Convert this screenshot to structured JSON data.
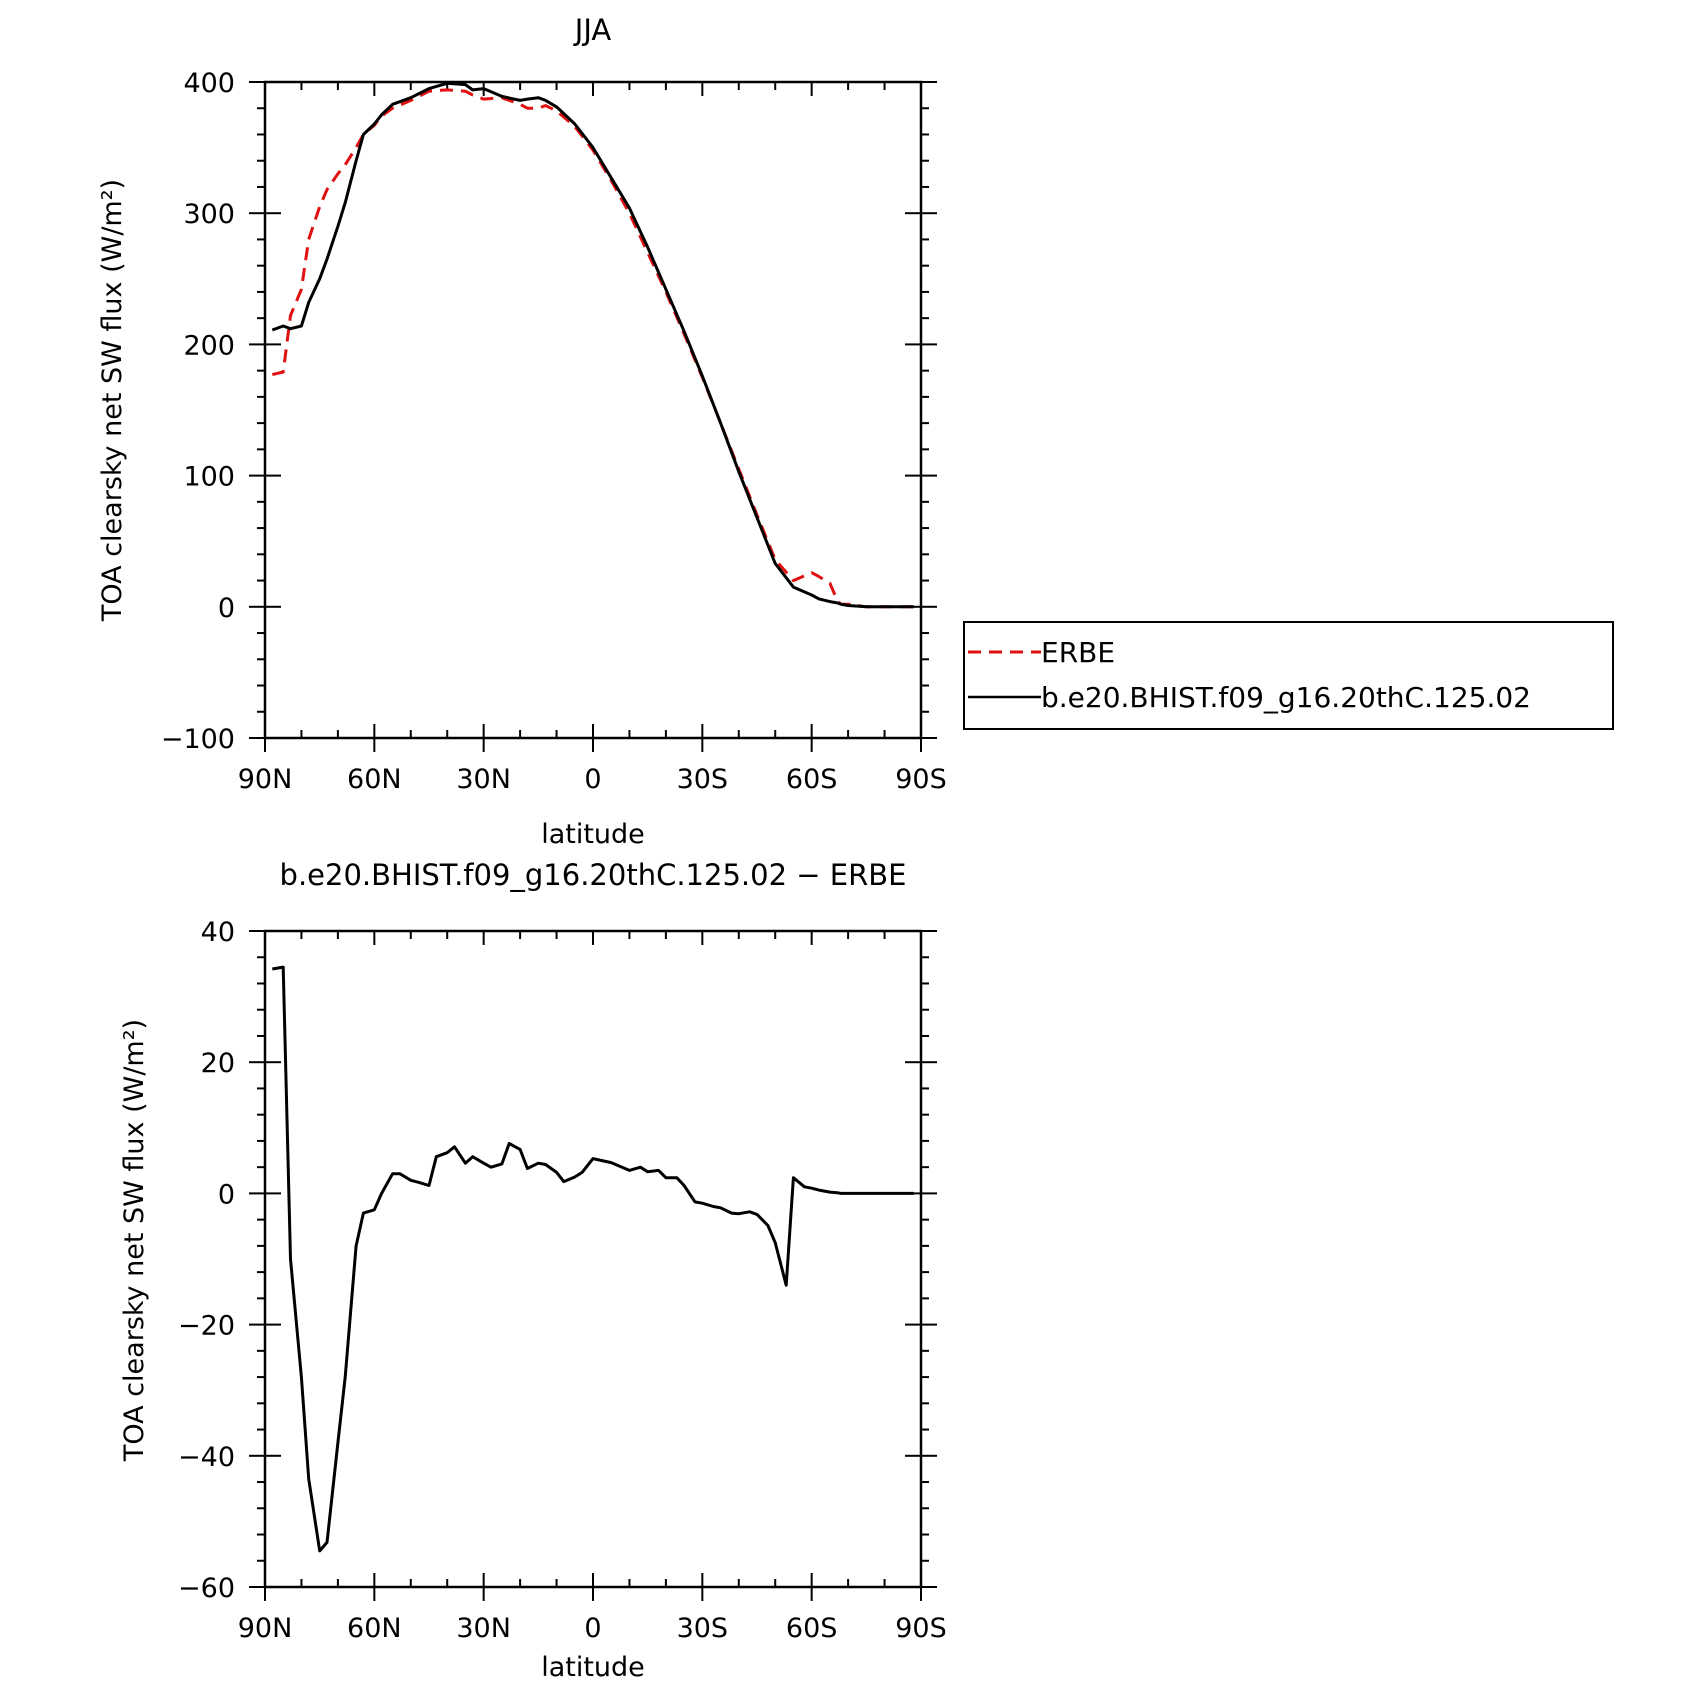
{
  "chart_data": [
    {
      "type": "line",
      "title": "JJA",
      "xlabel": "latitude",
      "ylabel": "TOA clearsky net SW flux (W/m²)",
      "xlim": [
        90,
        -90
      ],
      "ylim": [
        -100,
        400
      ],
      "x_ticks": [
        90,
        60,
        30,
        0,
        -30,
        -60,
        -90
      ],
      "x_tick_labels": [
        "90N",
        "60N",
        "30N",
        "0",
        "30S",
        "60S",
        "90S"
      ],
      "y_ticks": [
        -100,
        0,
        100,
        200,
        300,
        400
      ],
      "y_tick_labels": [
        "−100",
        "0",
        "100",
        "200",
        "300",
        "400"
      ],
      "legend_position": "right",
      "series": [
        {
          "name": "ERBE",
          "color": "#e01010",
          "dash": "dashed",
          "x": [
            88,
            85,
            83,
            80,
            78,
            75,
            73,
            70,
            68,
            65,
            63,
            60,
            58,
            55,
            50,
            45,
            40,
            35,
            33,
            30,
            25,
            20,
            18,
            15,
            13,
            10,
            5,
            0,
            -5,
            -10,
            -15,
            -20,
            -25,
            -30,
            -35,
            -40,
            -45,
            -50,
            -55,
            -60,
            -62,
            -65,
            -67,
            -68,
            -70,
            -75,
            -80,
            -85,
            -88
          ],
          "y": [
            177,
            179,
            222,
            242,
            280,
            305,
            318,
            330,
            337,
            350,
            360,
            367,
            374,
            380,
            386,
            393,
            394,
            393,
            390,
            387,
            388,
            383,
            380,
            380,
            382,
            378,
            366,
            348,
            325,
            300,
            270,
            240,
            208,
            175,
            140,
            105,
            70,
            36,
            20,
            26,
            23,
            18,
            5,
            2,
            2,
            0,
            0,
            0,
            0
          ]
        },
        {
          "name": "b.e20.BHIST.f09_g16.20thC.125.02",
          "color": "#000000",
          "dash": "solid",
          "x": [
            88,
            85,
            83,
            80,
            78,
            75,
            73,
            70,
            68,
            65,
            63,
            60,
            58,
            55,
            50,
            45,
            40,
            35,
            33,
            30,
            25,
            20,
            18,
            15,
            13,
            10,
            5,
            0,
            -5,
            -10,
            -15,
            -20,
            -25,
            -30,
            -35,
            -40,
            -45,
            -50,
            -55,
            -60,
            -62,
            -65,
            -67,
            -68,
            -70,
            -75,
            -80,
            -85,
            -88
          ],
          "y": [
            211,
            214,
            212,
            214,
            232,
            250,
            265,
            290,
            308,
            340,
            360,
            368,
            375,
            383,
            388,
            395,
            399,
            398,
            394,
            395,
            389,
            386,
            387,
            388,
            386,
            381,
            368,
            350,
            327,
            304,
            274,
            242,
            210,
            176,
            140,
            103,
            68,
            33,
            15,
            9,
            6,
            4,
            3,
            2,
            1,
            0,
            0,
            0,
            0
          ]
        }
      ]
    },
    {
      "type": "line",
      "title": "b.e20.BHIST.f09_g16.20thC.125.02 − ERBE",
      "xlabel": "latitude",
      "ylabel": "TOA clearsky net SW flux (W/m²)",
      "xlim": [
        90,
        -90
      ],
      "ylim": [
        -60,
        40
      ],
      "x_ticks": [
        90,
        60,
        30,
        0,
        -30,
        -60,
        -90
      ],
      "x_tick_labels": [
        "90N",
        "60N",
        "30N",
        "0",
        "30S",
        "60S",
        "90S"
      ],
      "y_ticks": [
        -60,
        -40,
        -20,
        0,
        20,
        40
      ],
      "y_tick_labels": [
        "−60",
        "−40",
        "−20",
        "0",
        "20",
        "40"
      ],
      "series": [
        {
          "color": "#000000",
          "dash": "solid",
          "x": [
            88,
            85,
            83,
            80,
            78,
            75,
            73,
            70,
            68,
            65,
            63,
            60,
            58,
            55,
            53,
            50,
            48,
            45,
            43,
            40,
            38,
            35,
            33,
            30,
            28,
            25,
            23,
            20,
            18,
            15,
            13,
            10,
            8,
            5,
            3,
            0,
            -5,
            -10,
            -13,
            -15,
            -18,
            -20,
            -23,
            -25,
            -28,
            -30,
            -33,
            -35,
            -38,
            -40,
            -43,
            -45,
            -48,
            -50,
            -53,
            -55,
            -58,
            -60,
            -62,
            -65,
            -67,
            -68,
            -70,
            -75,
            -80,
            -85,
            -88
          ],
          "y": [
            34.2,
            34.5,
            -10,
            -28,
            -43.5,
            -54.5,
            -53.2,
            -38,
            -28,
            -8,
            -3,
            -2.5,
            0,
            3,
            3,
            2,
            1.7,
            1.2,
            5.6,
            6.2,
            7.1,
            4.6,
            5.6,
            4.6,
            4,
            4.5,
            7.6,
            6.7,
            3.8,
            4.6,
            4.4,
            3.2,
            1.8,
            2.5,
            3.2,
            5.3,
            4.7,
            3.5,
            4,
            3.3,
            3.5,
            2.4,
            2.4,
            1.2,
            -1.3,
            -1.5,
            -2,
            -2.2,
            -3,
            -3.1,
            -2.8,
            -3.2,
            -4.9,
            -7.5,
            -14,
            2.4,
            1,
            0.8,
            0.5,
            0.2,
            0.1,
            0,
            0,
            0,
            0,
            0,
            0
          ]
        }
      ]
    }
  ]
}
